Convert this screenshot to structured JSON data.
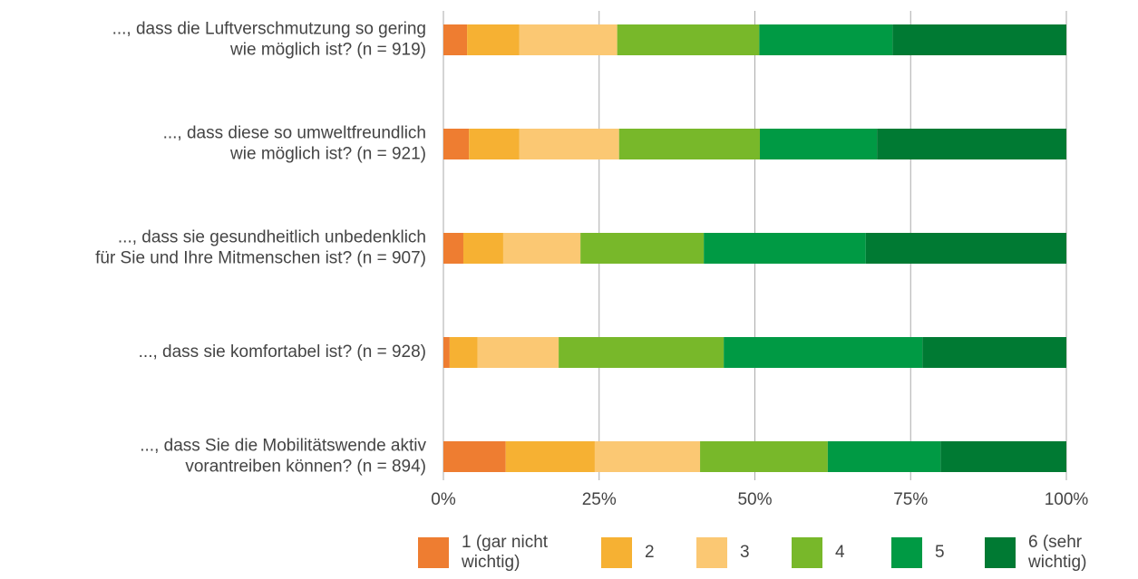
{
  "chart_data": {
    "type": "stacked-bar-horizontal",
    "categories": [
      [
        "..., dass die Luftverschmutzung so gering",
        "wie möglich ist? (n = 919)"
      ],
      [
        "..., dass diese so umweltfreundlich",
        "wie möglich ist? (n = 921)"
      ],
      [
        "..., dass sie gesundheitlich unbedenklich",
        "für Sie und Ihre Mitmenschen ist? (n = 907)"
      ],
      [
        "..., dass sie komfortabel ist? (n = 928)"
      ],
      [
        "..., dass Sie die Mobilitätswende aktiv",
        "vorantreiben können? (n = 894)"
      ]
    ],
    "series": [
      {
        "name": "1 (gar nicht wichtig)",
        "color": "#ee7d31",
        "values": [
          3.8,
          4.1,
          3.2,
          1.0,
          10.0
        ]
      },
      {
        "name": "2",
        "color": "#f6b133",
        "values": [
          8.4,
          8.1,
          6.4,
          4.5,
          14.3
        ]
      },
      {
        "name": "3",
        "color": "#fbc873",
        "values": [
          15.7,
          16.0,
          12.4,
          13.0,
          16.9
        ]
      },
      {
        "name": "4",
        "color": "#78b82a",
        "values": [
          22.8,
          22.6,
          19.8,
          26.5,
          20.5
        ]
      },
      {
        "name": "5",
        "color": "#009a44",
        "values": [
          21.4,
          18.8,
          26.0,
          31.9,
          18.1
        ]
      },
      {
        "name": "6 (sehr wichtig)",
        "color": "#007a33",
        "values": [
          27.9,
          30.4,
          32.2,
          23.1,
          20.2
        ]
      }
    ],
    "xlim": [
      0,
      100
    ],
    "xticks": [
      {
        "value": 0,
        "label": "0%"
      },
      {
        "value": 25,
        "label": "25%"
      },
      {
        "value": 50,
        "label": "50%"
      },
      {
        "value": 75,
        "label": "75%"
      },
      {
        "value": 100,
        "label": "100%"
      }
    ],
    "grid": true,
    "legend": "bottom"
  }
}
